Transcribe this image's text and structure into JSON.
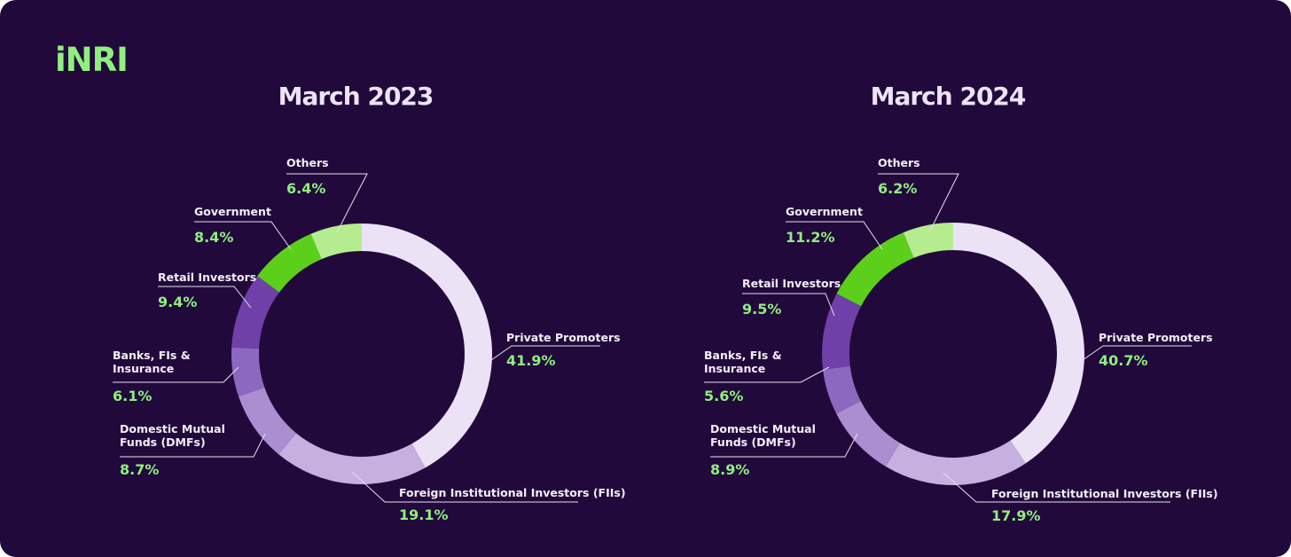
{
  "brand": {
    "logo_text": "iNRI",
    "accent_color": "#8fef7f"
  },
  "background_color": "#22093b",
  "chart_data": [
    {
      "type": "pie",
      "variant": "donut",
      "title": "March 2023",
      "categories": [
        "Private Promoters",
        "Foreign Institutional Investors (FIIs)",
        "Domestic Mutual Funds (DMFs)",
        "Banks, FIs & Insurance",
        "Retail Investors",
        "Government",
        "Others"
      ],
      "values": [
        41.9,
        19.1,
        8.7,
        6.1,
        9.4,
        8.4,
        6.4
      ],
      "value_labels": [
        "41.9%",
        "19.1%",
        "8.7%",
        "6.1%",
        "9.4%",
        "8.4%",
        "6.4%"
      ],
      "colors": [
        "#ebe3f5",
        "#c5b0e0",
        "#ab8ed0",
        "#8c68c0",
        "#6e40a8",
        "#5ccf1b",
        "#b5ec8f"
      ],
      "label_lines": [
        [
          "Private Promoters"
        ],
        [
          "Foreign Institutional Investors (FIIs)"
        ],
        [
          "Domestic Mutual",
          "Funds (DMFs)"
        ],
        [
          "Banks, FIs &",
          "Insurance"
        ],
        [
          "Retail Investors"
        ],
        [
          "Government"
        ],
        [
          "Others"
        ]
      ]
    },
    {
      "type": "pie",
      "variant": "donut",
      "title": "March 2024",
      "categories": [
        "Private Promoters",
        "Foreign Institutional Investors (FIIs)",
        "Domestic Mutual Funds (DMFs)",
        "Banks, FIs & Insurance",
        "Retail Investors",
        "Government",
        "Others"
      ],
      "values": [
        40.7,
        17.9,
        8.9,
        5.6,
        9.5,
        11.2,
        6.2
      ],
      "value_labels": [
        "40.7%",
        "17.9%",
        "8.9%",
        "5.6%",
        "9.5%",
        "11.2%",
        "6.2%"
      ],
      "colors": [
        "#ebe3f5",
        "#c5b0e0",
        "#ab8ed0",
        "#8c68c0",
        "#6e40a8",
        "#5ccf1b",
        "#b5ec8f"
      ],
      "label_lines": [
        [
          "Private Promoters"
        ],
        [
          "Foreign Institutional Investors (FIIs)"
        ],
        [
          "Domestic Mutual",
          "Funds (DMFs)"
        ],
        [
          "Banks, FIs &",
          "Insurance"
        ],
        [
          "Retail Investors"
        ],
        [
          "Government"
        ],
        [
          "Others"
        ]
      ]
    }
  ]
}
